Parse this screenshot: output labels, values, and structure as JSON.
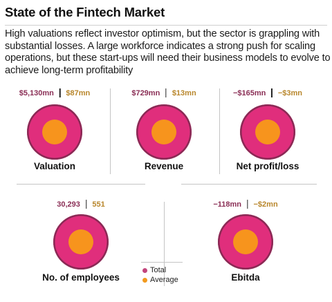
{
  "header": {
    "title": "State of the Fintech Market",
    "subtitle": "High valuations reflect investor optimism, but the sector is grappling with substantial losses. A large workforce indicates a strong push for scaling operations, but these start-ups will need their business models to evolve to achieve long-term profitability"
  },
  "colors": {
    "total": "#e02e7c",
    "average": "#f7941d",
    "total_text": "#8a2e55",
    "average_text": "#b8862b"
  },
  "legend": {
    "total": "Total",
    "average": "Average"
  },
  "chart_data": {
    "type": "proportional circles",
    "metrics": [
      {
        "label": "Valuation",
        "total": "$5,130mn",
        "average": "$87mn"
      },
      {
        "label": "Revenue",
        "total": "$729mn",
        "average": "$13mn"
      },
      {
        "label": "Net profit/loss",
        "total": "−$165mn",
        "average": "−$3mn"
      },
      {
        "label": "No. of employees",
        "total": "30,293",
        "average": "551"
      },
      {
        "label": "Ebitda",
        "total": "−118mn",
        "average": "−$2mn"
      }
    ]
  }
}
